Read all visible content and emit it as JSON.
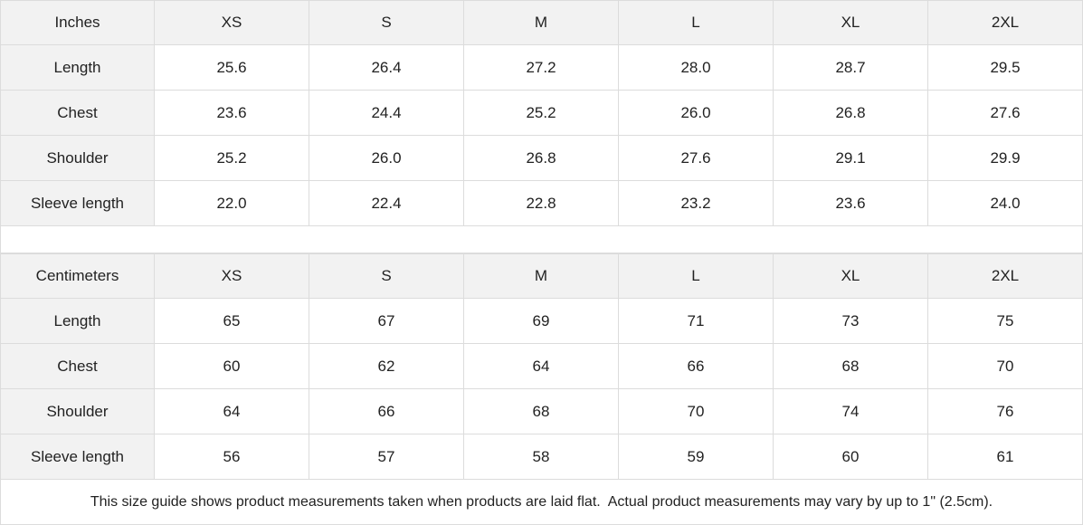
{
  "tables": [
    {
      "header": [
        "Inches",
        "XS",
        "S",
        "M",
        "L",
        "XL",
        "2XL"
      ],
      "rows": [
        [
          "Length",
          "25.6",
          "26.4",
          "27.2",
          "28.0",
          "28.7",
          "29.5"
        ],
        [
          "Chest",
          "23.6",
          "24.4",
          "25.2",
          "26.0",
          "26.8",
          "27.6"
        ],
        [
          "Shoulder",
          "25.2",
          "26.0",
          "26.8",
          "27.6",
          "29.1",
          "29.9"
        ],
        [
          "Sleeve length",
          "22.0",
          "22.4",
          "22.8",
          "23.2",
          "23.6",
          "24.0"
        ]
      ]
    },
    {
      "header": [
        "Centimeters",
        "XS",
        "S",
        "M",
        "L",
        "XL",
        "2XL"
      ],
      "rows": [
        [
          "Length",
          "65",
          "67",
          "69",
          "71",
          "73",
          "75"
        ],
        [
          "Chest",
          "60",
          "62",
          "64",
          "66",
          "68",
          "70"
        ],
        [
          "Shoulder",
          "64",
          "66",
          "68",
          "70",
          "74",
          "76"
        ],
        [
          "Sleeve length",
          "56",
          "57",
          "58",
          "59",
          "60",
          "61"
        ]
      ]
    }
  ],
  "note": "This size guide shows product measurements taken when products are laid flat.  Actual product measurements may vary by up to 1\" (2.5cm)."
}
